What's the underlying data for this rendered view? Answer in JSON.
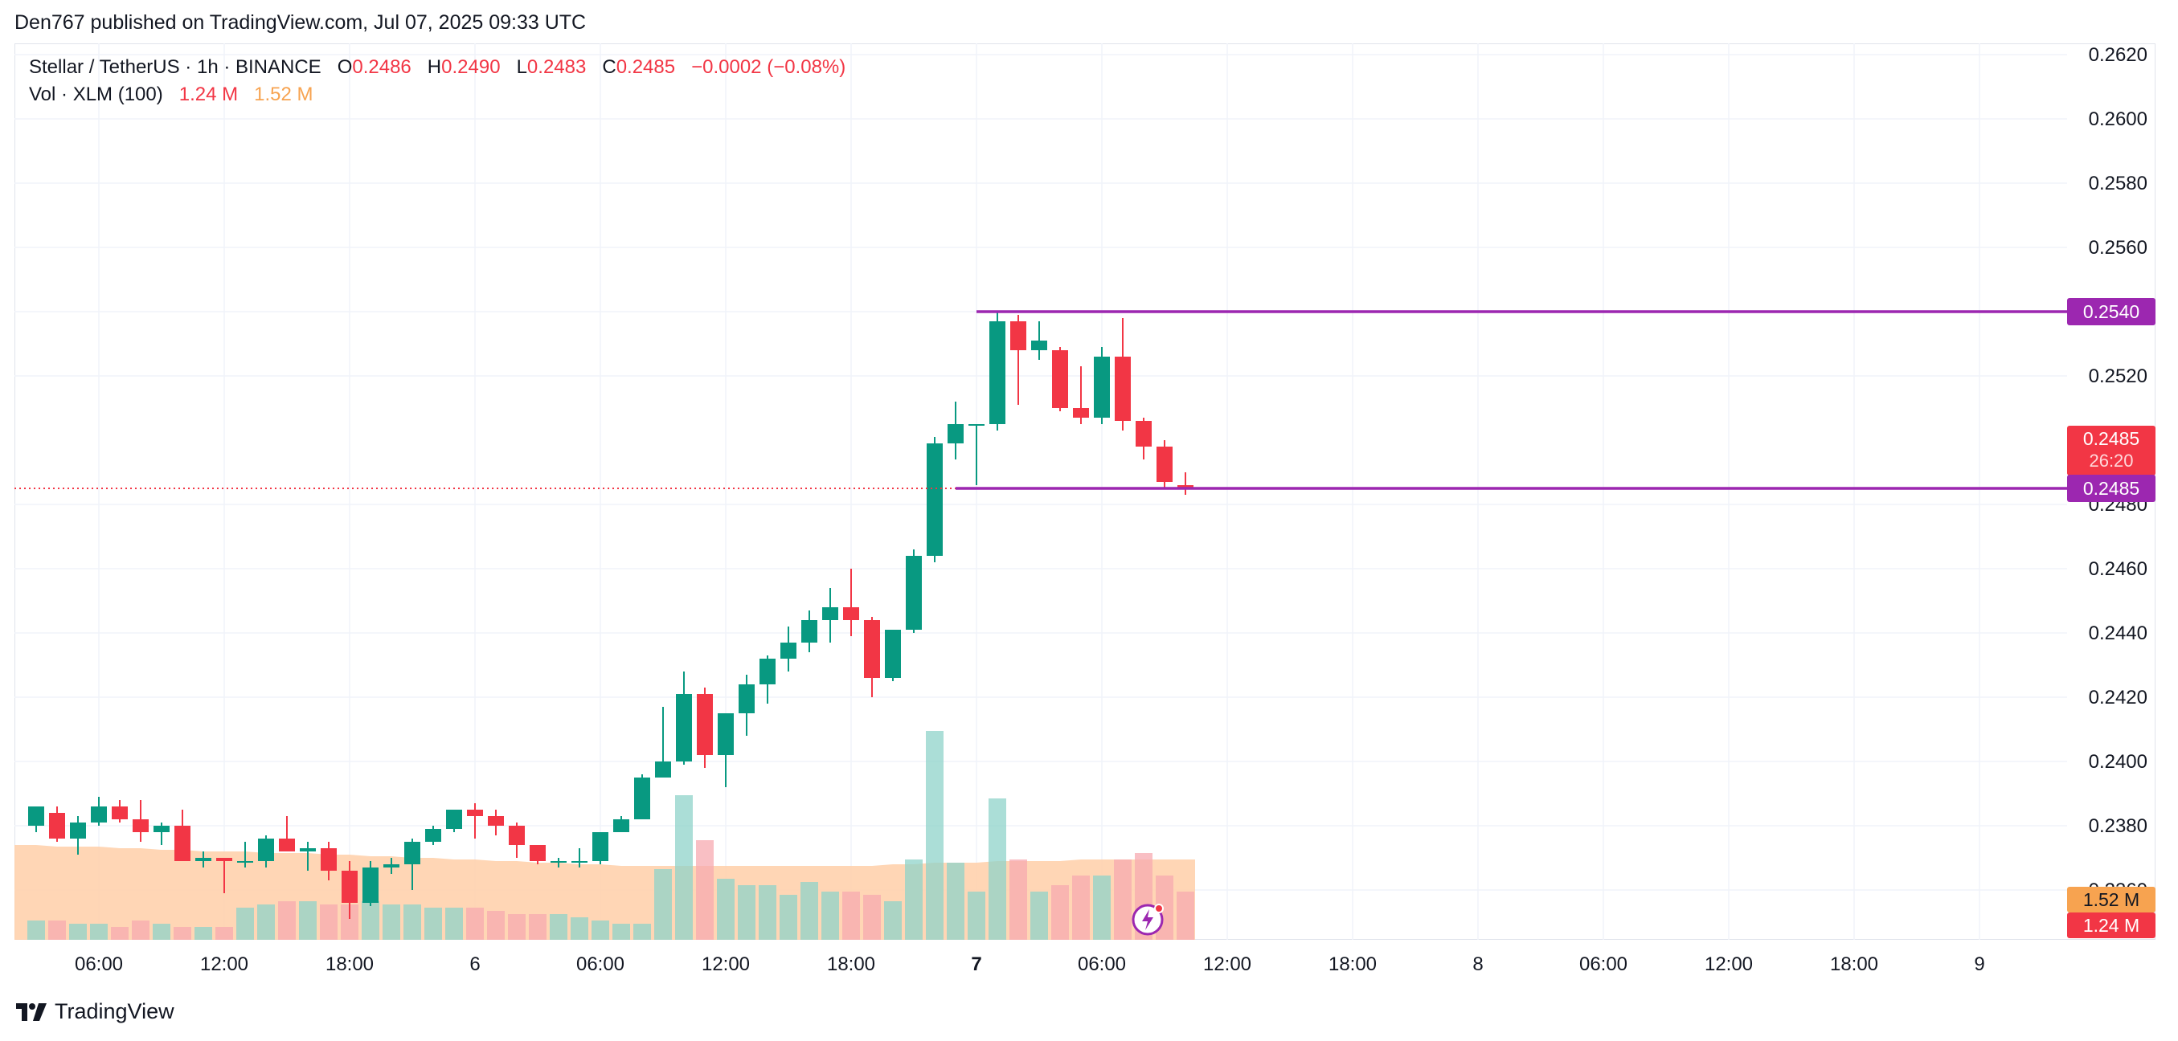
{
  "header": {
    "published": "Den767 published on TradingView.com, Jul 07, 2025 09:33 UTC"
  },
  "legend": {
    "symbol": "Stellar / TetherUS · 1h · BINANCE",
    "o_label": "O",
    "o_value": "0.2486",
    "h_label": "H",
    "h_value": "0.2490",
    "l_label": "L",
    "l_value": "0.2483",
    "c_label": "C",
    "c_value": "0.2485",
    "change": "−0.0002 (−0.08%)",
    "vol_label": "Vol · XLM (100)",
    "vol_value": "1.24 M",
    "vol_ma_value": "1.52 M"
  },
  "price_badges": {
    "level_upper": "0.2540",
    "last_price": "0.2485",
    "countdown": "26:20",
    "level_lower": "0.2485",
    "vol_ma": "1.52 M",
    "vol": "1.24 M"
  },
  "brand": {
    "name": "TradingView"
  },
  "colors": {
    "up": "#089981",
    "down": "#f23645",
    "level_line": "#9c27b0",
    "vol_up": "#8fd3ca",
    "vol_down": "#f7a9b0",
    "vol_ma_area": "#ffcfa8",
    "grid": "#f0f3fa"
  },
  "chart_data": {
    "type": "candlestick",
    "interval": "1h",
    "y_axis": {
      "min": 0.236,
      "max": 0.263,
      "ticks": [
        "0.2620",
        "0.2600",
        "0.2580",
        "0.2560",
        "0.2540",
        "0.2520",
        "0.2480",
        "0.2460",
        "0.2440",
        "0.2420",
        "0.2400",
        "0.2380",
        "0.2360"
      ]
    },
    "x_ticks": [
      {
        "label": "06:00",
        "i": 3
      },
      {
        "label": "12:00",
        "i": 9
      },
      {
        "label": "18:00",
        "i": 15
      },
      {
        "label": "6",
        "i": 21
      },
      {
        "label": "06:00",
        "i": 27
      },
      {
        "label": "12:00",
        "i": 33
      },
      {
        "label": "18:00",
        "i": 39
      },
      {
        "label": "7",
        "i": 45
      },
      {
        "label": "06:00",
        "i": 51
      },
      {
        "label": "12:00",
        "i": 57
      },
      {
        "label": "18:00",
        "i": 63
      },
      {
        "label": "8",
        "i": 69
      },
      {
        "label": "06:00",
        "i": 75
      },
      {
        "label": "12:00",
        "i": 81
      },
      {
        "label": "18:00",
        "i": 87
      },
      {
        "label": "9",
        "i": 93
      }
    ],
    "candles": [
      [
        0.238,
        0.2384,
        0.2378,
        0.2386
      ],
      [
        0.2384,
        0.2386,
        0.2375,
        0.2376
      ],
      [
        0.2376,
        0.2383,
        0.2371,
        0.2381
      ],
      [
        0.2381,
        0.2389,
        0.238,
        0.2386
      ],
      [
        0.2386,
        0.2388,
        0.2381,
        0.2382
      ],
      [
        0.2382,
        0.2388,
        0.2375,
        0.2378
      ],
      [
        0.2378,
        0.2381,
        0.2374,
        0.238
      ],
      [
        0.238,
        0.2385,
        0.2369,
        0.2369
      ],
      [
        0.2369,
        0.2372,
        0.2367,
        0.237
      ],
      [
        0.237,
        0.237,
        0.2359,
        0.2369
      ],
      [
        0.2369,
        0.2375,
        0.2367,
        0.2369
      ],
      [
        0.2369,
        0.2377,
        0.2367,
        0.2376
      ],
      [
        0.2376,
        0.2383,
        0.2372,
        0.2372
      ],
      [
        0.2372,
        0.2375,
        0.2366,
        0.2373
      ],
      [
        0.2373,
        0.2375,
        0.2363,
        0.2366
      ],
      [
        0.2366,
        0.2369,
        0.2351,
        0.2356
      ],
      [
        0.2356,
        0.2369,
        0.2355,
        0.2367
      ],
      [
        0.2367,
        0.237,
        0.2365,
        0.2368
      ],
      [
        0.2368,
        0.2376,
        0.236,
        0.2375
      ],
      [
        0.2375,
        0.238,
        0.2374,
        0.2379
      ],
      [
        0.2379,
        0.2385,
        0.2378,
        0.2385
      ],
      [
        0.2385,
        0.2387,
        0.2376,
        0.2383
      ],
      [
        0.2383,
        0.2385,
        0.2377,
        0.238
      ],
      [
        0.238,
        0.2381,
        0.237,
        0.2374
      ],
      [
        0.2374,
        0.2374,
        0.2368,
        0.2369
      ],
      [
        0.2369,
        0.237,
        0.2367,
        0.2369
      ],
      [
        0.2369,
        0.2373,
        0.2367,
        0.2369
      ],
      [
        0.2369,
        0.2378,
        0.2368,
        0.2378
      ],
      [
        0.2378,
        0.2383,
        0.2378,
        0.2382
      ],
      [
        0.2382,
        0.2396,
        0.2382,
        0.2395
      ],
      [
        0.2395,
        0.2417,
        0.2395,
        0.24
      ],
      [
        0.24,
        0.2428,
        0.2399,
        0.2421
      ],
      [
        0.2421,
        0.2423,
        0.2398,
        0.2402
      ],
      [
        0.2402,
        0.2415,
        0.2392,
        0.2415
      ],
      [
        0.2415,
        0.2427,
        0.2408,
        0.2424
      ],
      [
        0.2424,
        0.2433,
        0.2418,
        0.2432
      ],
      [
        0.2432,
        0.2442,
        0.2428,
        0.2437
      ],
      [
        0.2437,
        0.2447,
        0.2434,
        0.2444
      ],
      [
        0.2444,
        0.2454,
        0.2437,
        0.2448
      ],
      [
        0.2448,
        0.246,
        0.2439,
        0.2444
      ],
      [
        0.2444,
        0.2445,
        0.242,
        0.2426
      ],
      [
        0.2426,
        0.2441,
        0.2425,
        0.2441
      ],
      [
        0.2441,
        0.2466,
        0.244,
        0.2464
      ],
      [
        0.2464,
        0.2501,
        0.2462,
        0.2499
      ],
      [
        0.2499,
        0.2512,
        0.2494,
        0.2505
      ],
      [
        0.2505,
        0.2505,
        0.2486,
        0.2505
      ],
      [
        0.2505,
        0.254,
        0.2503,
        0.2537
      ],
      [
        0.2537,
        0.2539,
        0.2511,
        0.2528
      ],
      [
        0.2528,
        0.2537,
        0.2525,
        0.2531
      ],
      [
        0.2528,
        0.2529,
        0.2509,
        0.251
      ],
      [
        0.251,
        0.2523,
        0.2505,
        0.2507
      ],
      [
        0.2507,
        0.2529,
        0.2505,
        0.2526
      ],
      [
        0.2526,
        0.2538,
        0.2503,
        0.2506
      ],
      [
        0.2506,
        0.2507,
        0.2494,
        0.2498
      ],
      [
        0.2498,
        0.25,
        0.2485,
        0.2487
      ],
      [
        0.2486,
        0.249,
        0.2483,
        0.2485
      ]
    ],
    "volume": [
      12,
      12,
      10,
      10,
      8,
      12,
      10,
      8,
      8,
      8,
      20,
      22,
      24,
      24,
      22,
      22,
      24,
      22,
      22,
      20,
      20,
      20,
      18,
      16,
      16,
      16,
      14,
      12,
      10,
      10,
      44,
      90,
      62,
      38,
      34,
      34,
      28,
      36,
      30,
      30,
      28,
      24,
      50,
      130,
      48,
      30,
      88,
      50,
      30,
      34,
      40,
      40,
      50,
      54,
      40,
      30
    ],
    "volume_ma": [
      59,
      58,
      58,
      58,
      57,
      57,
      56,
      56,
      55,
      55,
      55,
      54,
      54,
      54,
      53,
      53,
      52,
      52,
      51,
      51,
      50,
      50,
      49,
      49,
      48,
      48,
      47,
      47,
      46,
      46,
      46,
      46,
      46,
      46,
      46,
      46,
      46,
      46,
      46,
      46,
      46,
      47,
      47,
      48,
      48,
      48,
      49,
      49,
      49,
      49,
      50,
      50,
      50,
      50,
      50,
      50
    ],
    "horizontal_levels": [
      {
        "price": 0.254,
        "from_index": 45
      },
      {
        "price": 0.2485,
        "from_index": 44
      }
    ]
  }
}
